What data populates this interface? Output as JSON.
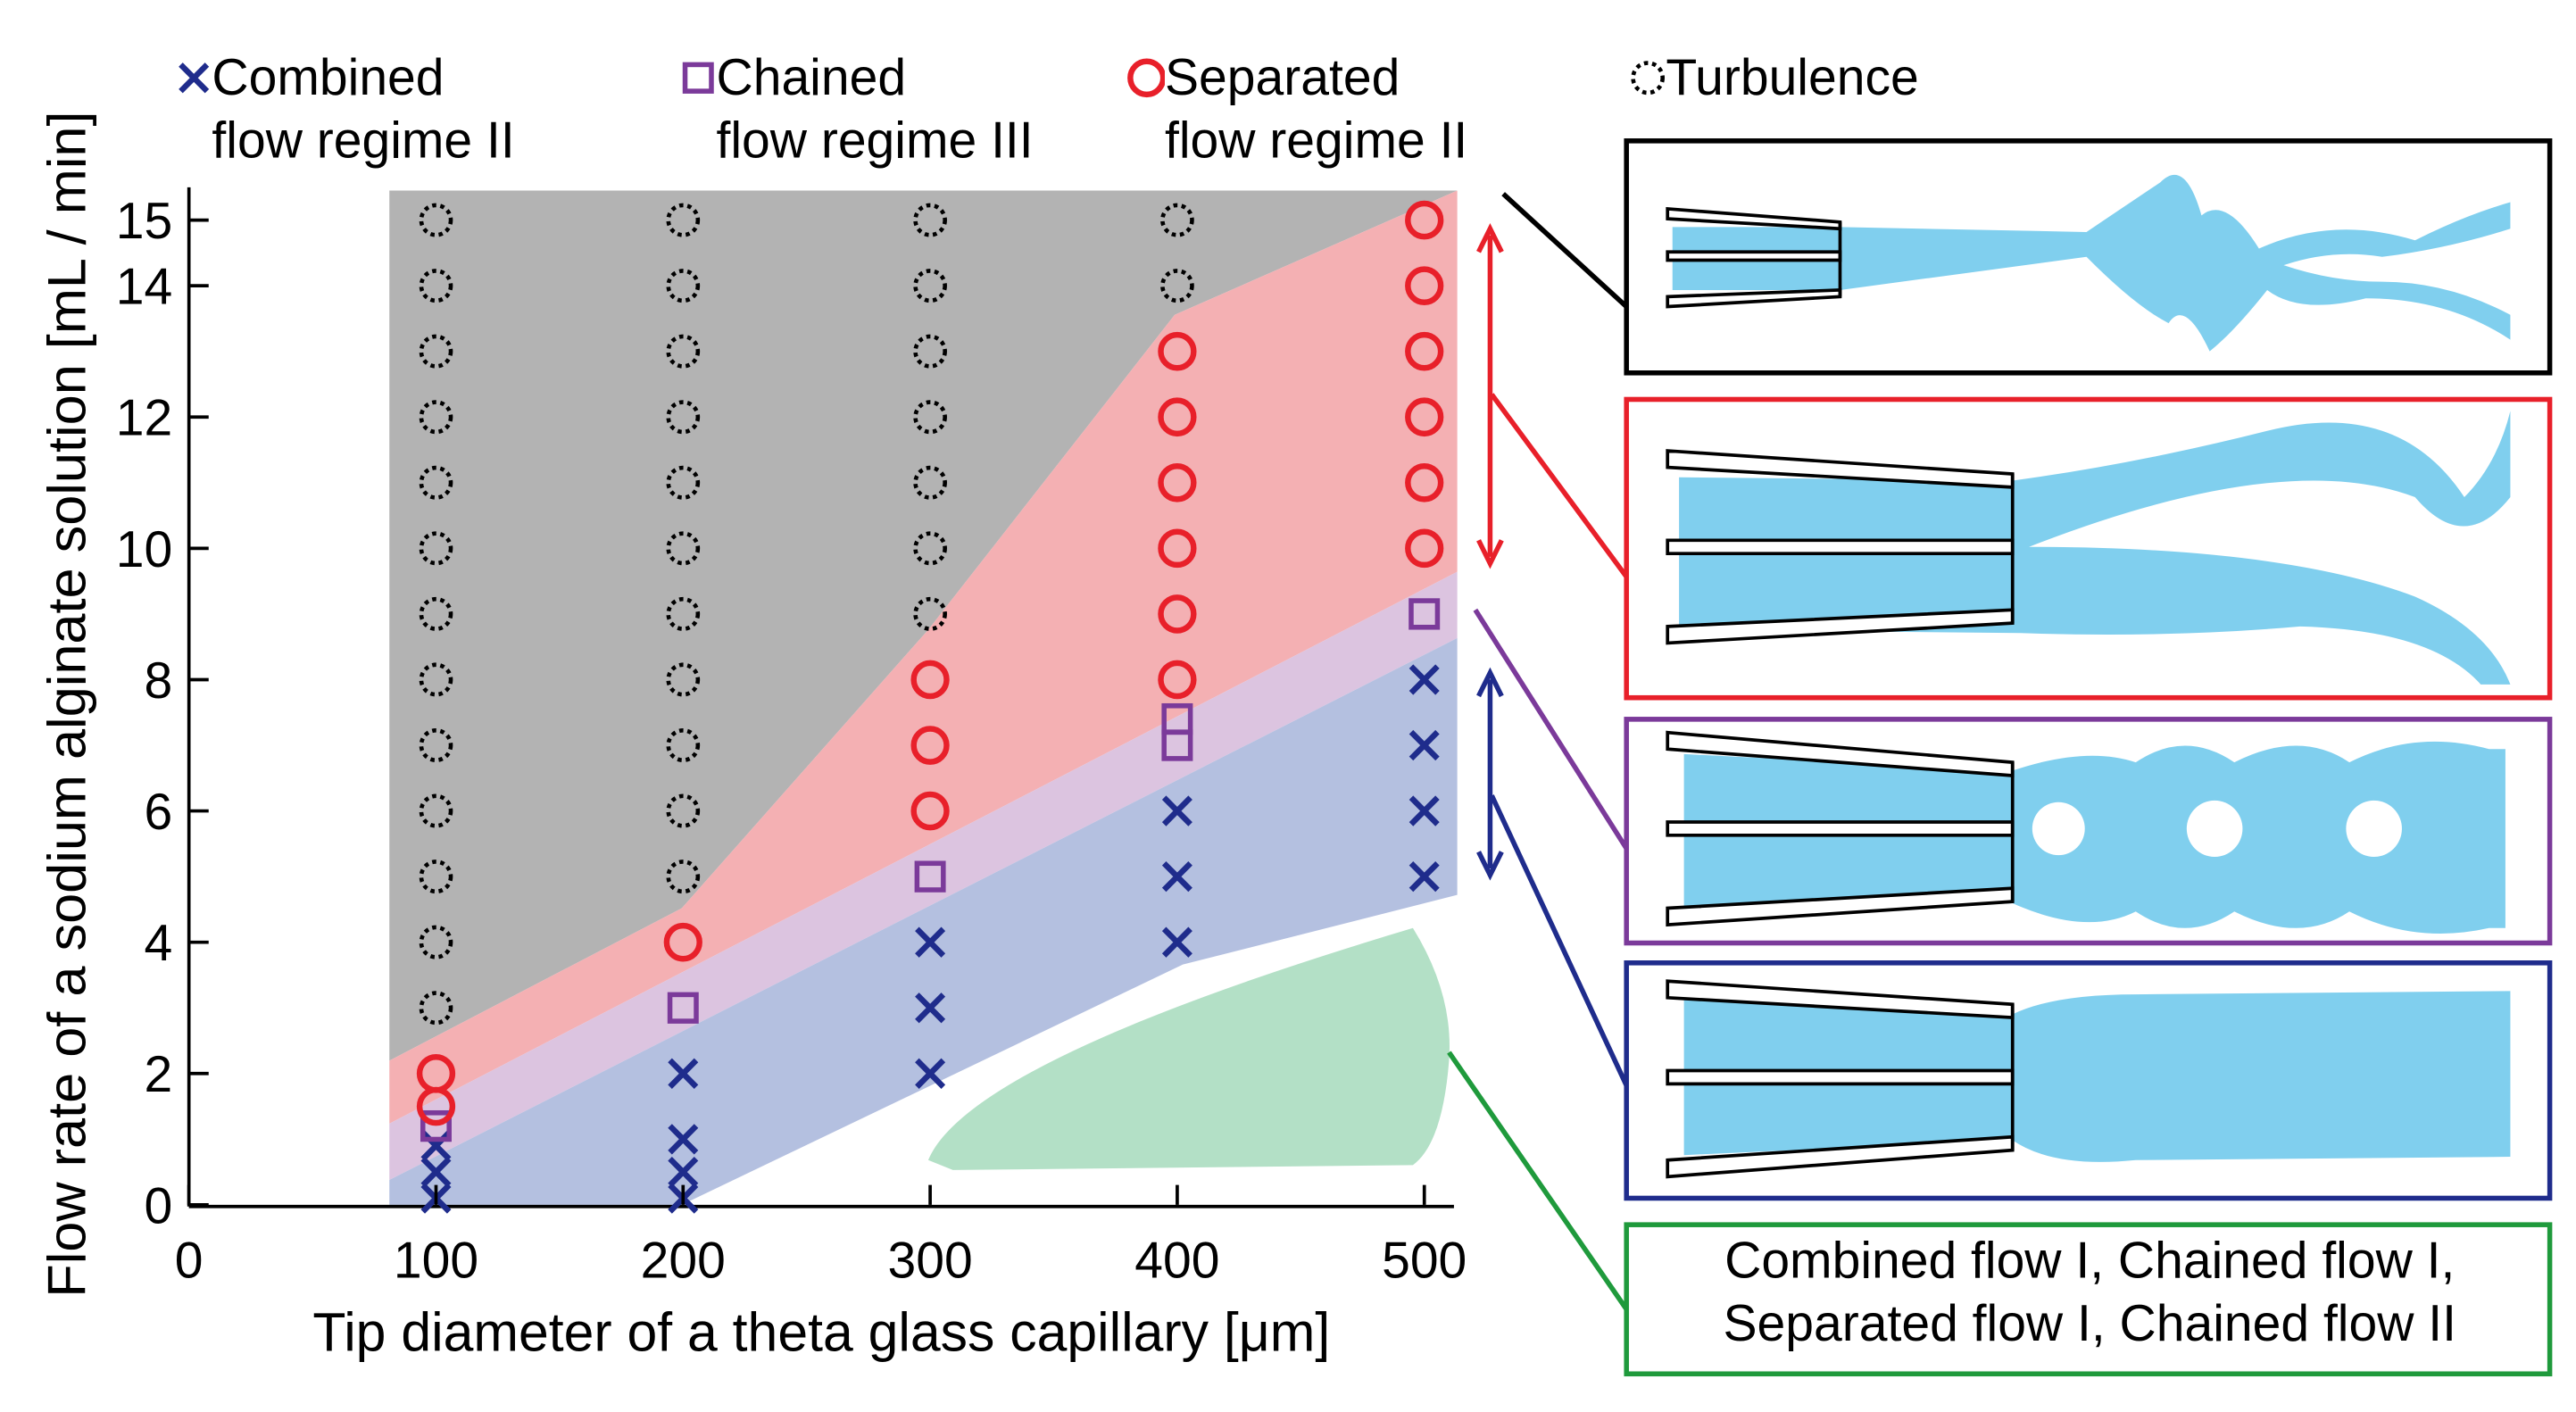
{
  "chart_data": {
    "type": "scatter",
    "x_label": "Tip diameter of a theta glass capillary [μm]",
    "y_label": "Flow rate of a sodium alginate solution [mL / min]",
    "xlim": [
      0,
      512
    ],
    "ylim": [
      0,
      15.5
    ],
    "xticks": [
      0,
      100,
      200,
      300,
      400,
      500
    ],
    "yticks": [
      0,
      2,
      4,
      6,
      8,
      10,
      12,
      14,
      15
    ],
    "series": [
      {
        "name": "Combined\nflow regime II",
        "color": "#1f2c8c",
        "marker": "x",
        "x": [
          100,
          100,
          100,
          200,
          200,
          200,
          200,
          300,
          300,
          300,
          400,
          400,
          400,
          500,
          500,
          500,
          500
        ],
        "values": [
          0.1,
          0.5,
          0.9,
          0.1,
          0.5,
          1,
          2,
          2,
          3,
          4,
          4,
          5,
          6,
          5,
          6,
          7,
          8
        ]
      },
      {
        "name": "Chained\nflow regime III",
        "color": "#7b3a9a",
        "marker": "square",
        "x": [
          100,
          200,
          300,
          400,
          400,
          500
        ],
        "values": [
          1.2,
          3,
          5,
          7,
          7.4,
          9
        ]
      },
      {
        "name": "Separated\nflow regime II",
        "color": "#e8202a",
        "marker": "circle",
        "x": [
          100,
          100,
          200,
          300,
          300,
          300,
          400,
          400,
          400,
          400,
          400,
          400,
          500,
          500,
          500,
          500,
          500,
          500
        ],
        "values": [
          1.5,
          2,
          4,
          6,
          7,
          8,
          8,
          9,
          10,
          11,
          12,
          13,
          10,
          11,
          12,
          13,
          14,
          15
        ]
      },
      {
        "name": "Turbulence",
        "color": "#000000",
        "marker": "dotted-circle",
        "x": [
          100,
          100,
          100,
          100,
          100,
          100,
          100,
          100,
          100,
          100,
          100,
          100,
          100,
          200,
          200,
          200,
          200,
          200,
          200,
          200,
          200,
          200,
          200,
          200,
          300,
          300,
          300,
          300,
          300,
          300,
          300,
          400,
          400
        ],
        "values": [
          3,
          4,
          5,
          6,
          7,
          8,
          9,
          10,
          11,
          12,
          13,
          14,
          15,
          5,
          6,
          7,
          8,
          9,
          10,
          11,
          12,
          13,
          14,
          15,
          9,
          10,
          11,
          12,
          13,
          14,
          15,
          14,
          15
        ]
      }
    ],
    "annotation": "Combined flow I, Chained flow I,\nSeparated flow I, Chained flow II"
  }
}
